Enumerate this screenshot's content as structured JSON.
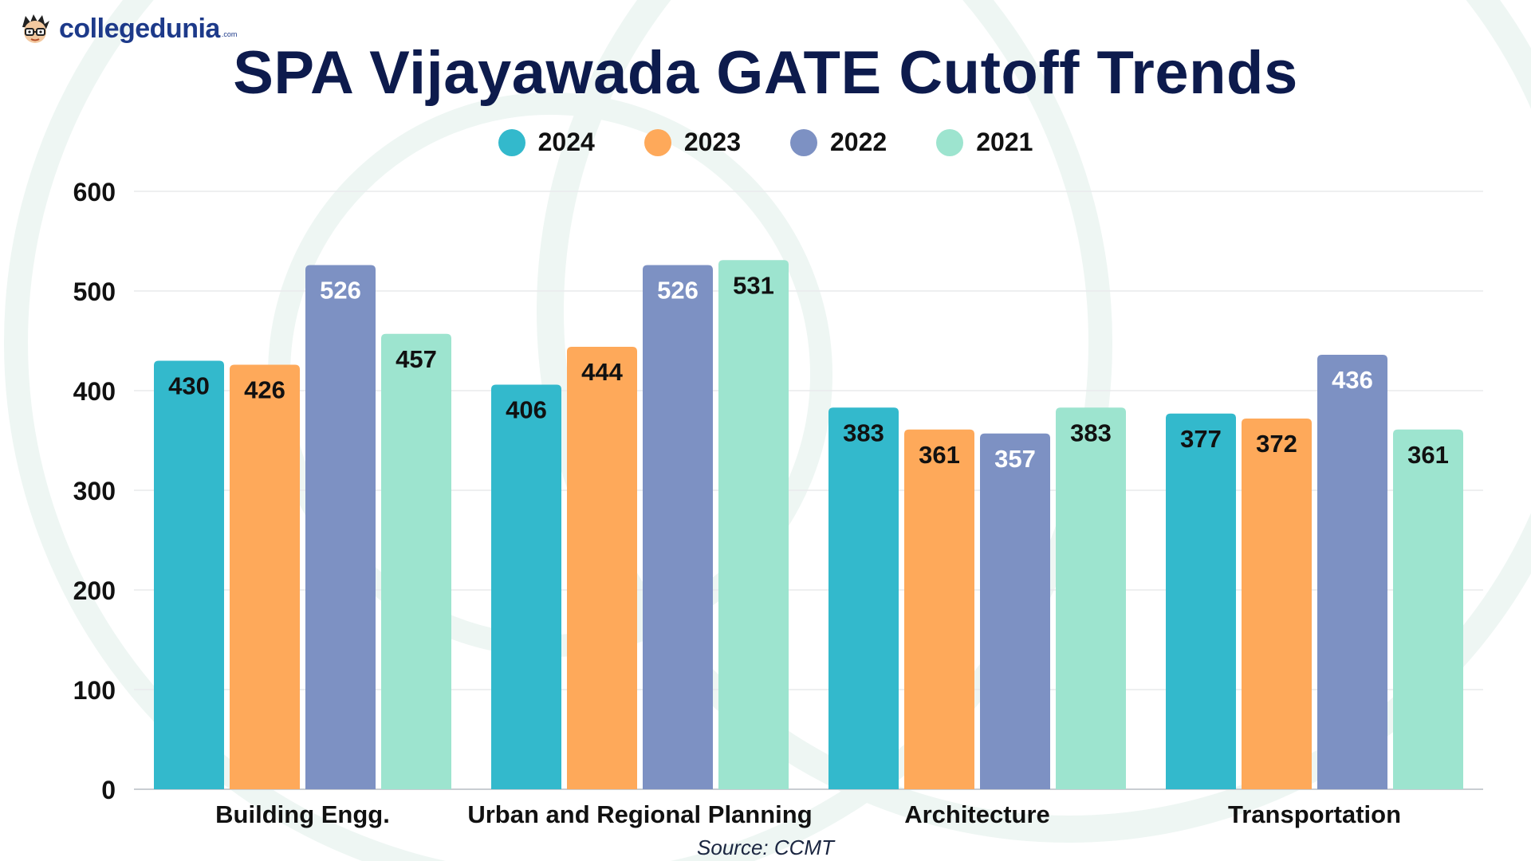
{
  "brand": {
    "name": "collegedunia",
    "tld": ".com",
    "color": "#1d3a8a"
  },
  "chart_data": {
    "type": "bar",
    "title": "SPA Vijayawada GATE Cutoff Trends",
    "categories": [
      "Building Engg.",
      "Urban and Regional Planning",
      "Architecture",
      "Transportation"
    ],
    "series": [
      {
        "name": "2024",
        "color": "#33b9cc",
        "label_color": "#111111",
        "values": [
          430,
          406,
          383,
          377
        ]
      },
      {
        "name": "2023",
        "color": "#fea95a",
        "label_color": "#111111",
        "values": [
          426,
          444,
          361,
          372
        ]
      },
      {
        "name": "2022",
        "color": "#7d91c3",
        "label_color": "#ffffff",
        "values": [
          526,
          526,
          357,
          436
        ]
      },
      {
        "name": "2021",
        "color": "#9de4cf",
        "label_color": "#111111",
        "values": [
          457,
          531,
          383,
          361
        ]
      }
    ],
    "ylim": [
      0,
      600
    ],
    "yticks": [
      0,
      100,
      200,
      300,
      400,
      500,
      600
    ],
    "xlabel": "",
    "ylabel": "",
    "grid": true,
    "legend": "top-center",
    "source": "Source: CCMT"
  }
}
